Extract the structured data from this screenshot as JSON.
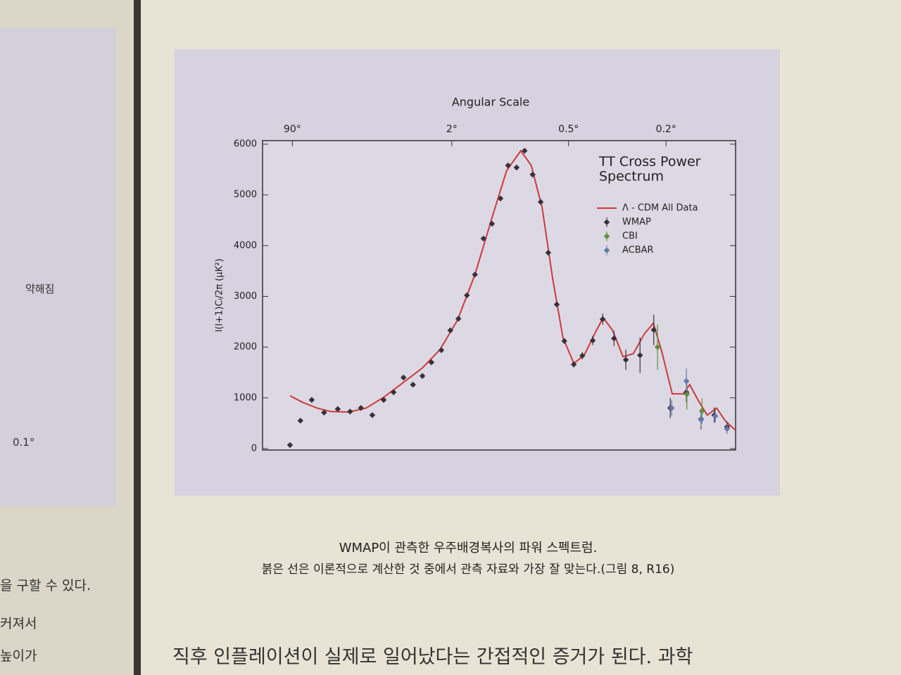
{
  "chart_data": {
    "type": "scatter",
    "top_axis_label": "Angular Scale",
    "ylabel": "l(l+1)Cₗ/2π (μK²)",
    "annotation": "TT Cross Power Spectrum",
    "legend": "upper right",
    "xlim": [
      0,
      100
    ],
    "xticks": [
      {
        "value": 6.3,
        "label": "90°"
      },
      {
        "value": 40,
        "label": "2°"
      },
      {
        "value": 64.7,
        "label": "0.5°"
      },
      {
        "value": 85.3,
        "label": "0.2°"
      }
    ],
    "ylim": [
      0,
      6000
    ],
    "yticks": [
      0,
      1000,
      2000,
      3000,
      4000,
      5000,
      6000
    ],
    "series": [
      {
        "name": "Λ - CDM All Data",
        "color": "#cc3b3b",
        "style": "line",
        "x": [
          5.8,
          8.5,
          11.5,
          14.4,
          18.2,
          21.9,
          25.6,
          29.3,
          33.8,
          37.5,
          41.2,
          44.9,
          48.7,
          51.6,
          54.6,
          56.8,
          59.1,
          61.3,
          63.5,
          65.8,
          68.0,
          70.2,
          72.0,
          74.0,
          76.2,
          78.4,
          80.7,
          82.6,
          84.4,
          86.6,
          89.0,
          90.3,
          92.1,
          94.0,
          96.0,
          97.8,
          100
        ],
        "values": [
          1040,
          910,
          800,
          730,
          720,
          800,
          1010,
          1270,
          1590,
          1950,
          2530,
          3430,
          4610,
          5480,
          5870,
          5580,
          4750,
          3370,
          2190,
          1680,
          1840,
          2260,
          2580,
          2330,
          1810,
          1870,
          2260,
          2470,
          1910,
          1080,
          1080,
          1260,
          950,
          660,
          800,
          550,
          360
        ]
      },
      {
        "name": "WMAP",
        "color": "#3a3038",
        "style": "points",
        "x": [
          5.8,
          8.0,
          10.4,
          13.0,
          15.9,
          18.5,
          20.8,
          23.2,
          25.6,
          27.7,
          29.8,
          31.8,
          33.8,
          35.7,
          37.8,
          39.7,
          41.4,
          43.2,
          44.9,
          46.7,
          48.5,
          50.3,
          51.9,
          53.7,
          55.4,
          57.1,
          58.8,
          60.4,
          62.2,
          63.8,
          65.8,
          67.6,
          69.8,
          71.9,
          74.3,
          76.8,
          79.8,
          82.7,
          86.2,
          89.6,
          92.7,
          95.5,
          98.2
        ],
        "values": [
          70,
          550,
          960,
          710,
          780,
          730,
          800,
          660,
          960,
          1110,
          1400,
          1260,
          1430,
          1700,
          1940,
          2330,
          2560,
          3020,
          3430,
          4140,
          4430,
          4930,
          5580,
          5540,
          5870,
          5400,
          4860,
          3860,
          2840,
          2120,
          1660,
          1830,
          2130,
          2550,
          2170,
          1750,
          1840,
          2340,
          800,
          1110,
          580,
          660,
          430
        ],
        "errors": [
          30,
          30,
          30,
          30,
          30,
          30,
          30,
          30,
          30,
          30,
          30,
          30,
          30,
          30,
          30,
          30,
          30,
          30,
          30,
          30,
          30,
          40,
          40,
          40,
          40,
          40,
          40,
          40,
          40,
          50,
          60,
          70,
          90,
          110,
          150,
          200,
          350,
          300,
          200,
          200,
          200,
          150,
          100
        ]
      },
      {
        "name": "CBI",
        "color": "#5f8f3e",
        "style": "points",
        "x": [
          83.5,
          89.7,
          92.9
        ],
        "values": [
          2000,
          1070,
          740
        ],
        "errors": [
          450,
          300,
          250
        ]
      },
      {
        "name": "ACBAR",
        "color": "#6577ad",
        "style": "points",
        "x": [
          86.5,
          89.6,
          92.7,
          95.7,
          98.2
        ],
        "values": [
          800,
          1330,
          570,
          640,
          390
        ],
        "errors": [
          150,
          250,
          150,
          120,
          100
        ]
      }
    ]
  },
  "caption": [
    "WMAP이 관측한 우주배경복사의 파워 스펙트럼.",
    "붉은 선은 이론적으로 계산한 것 중에서 관측 자료와 가장 잘 맞는다.(그림 8, R16)"
  ],
  "body_text": "직후 인플레이션이 실제로 일어났다는 간접적인 증거가 된다. 과학",
  "left_page": {
    "annotation": "약해짐",
    "axis_label": "0.1°",
    "lines": [
      "을 구할 수 있다.",
      "커져서",
      "높이가"
    ]
  }
}
